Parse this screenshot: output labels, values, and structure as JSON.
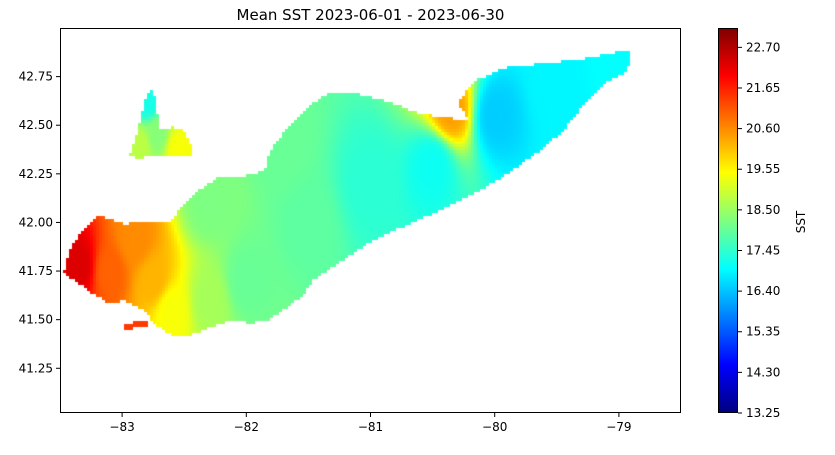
{
  "chart_data": {
    "type": "heatmap",
    "title": "Mean SST 2023-06-01 - 2023-06-30",
    "xlabel": "",
    "ylabel": "",
    "xlim": [
      -83.5,
      -78.5
    ],
    "ylim": [
      41.02,
      43.0
    ],
    "x_ticks": [
      -83,
      -82,
      -81,
      -80,
      -79
    ],
    "x_tick_labels": [
      "−83",
      "−82",
      "−81",
      "−80",
      "−79"
    ],
    "y_ticks": [
      41.25,
      41.5,
      41.75,
      42.0,
      42.25,
      42.5,
      42.75
    ],
    "y_tick_labels": [
      "41.25",
      "41.50",
      "41.75",
      "42.00",
      "42.25",
      "42.50",
      "42.75"
    ],
    "colormap": "jet",
    "colorbar": {
      "label": "SST",
      "vmin": 13.25,
      "vmax": 23.2,
      "ticks": [
        13.25,
        14.3,
        15.35,
        16.4,
        17.45,
        18.5,
        19.55,
        20.6,
        21.65,
        22.7
      ],
      "tick_labels": [
        "13.25",
        "14.30",
        "15.35",
        "16.40",
        "17.45",
        "18.50",
        "19.55",
        "20.60",
        "21.65",
        "22.70"
      ],
      "colors": [
        "#00007f",
        "#0000ff",
        "#007fff",
        "#00ffff",
        "#7fff7f",
        "#ffff00",
        "#ff7f00",
        "#ff0000",
        "#7f0000"
      ]
    },
    "regions": [
      {
        "name": "lake-erie",
        "boundary": [
          [
            -83.47,
            41.74
          ],
          [
            -83.42,
            41.86
          ],
          [
            -83.32,
            41.96
          ],
          [
            -83.2,
            42.04
          ],
          [
            -83.1,
            42.02
          ],
          [
            -82.98,
            41.99
          ],
          [
            -82.85,
            42.01
          ],
          [
            -82.72,
            42.0
          ],
          [
            -82.62,
            42.0
          ],
          [
            -82.52,
            42.08
          ],
          [
            -82.4,
            42.16
          ],
          [
            -82.2,
            42.24
          ],
          [
            -82.0,
            42.24
          ],
          [
            -81.85,
            42.27
          ],
          [
            -81.82,
            42.35
          ],
          [
            -81.75,
            42.42
          ],
          [
            -81.65,
            42.5
          ],
          [
            -81.5,
            42.6
          ],
          [
            -81.35,
            42.66
          ],
          [
            -81.1,
            42.66
          ],
          [
            -80.85,
            42.62
          ],
          [
            -80.6,
            42.56
          ],
          [
            -80.4,
            42.54
          ],
          [
            -80.2,
            42.52
          ],
          [
            -80.3,
            42.62
          ],
          [
            -80.15,
            42.73
          ],
          [
            -79.9,
            42.8
          ],
          [
            -79.55,
            42.82
          ],
          [
            -79.2,
            42.85
          ],
          [
            -79.0,
            42.88
          ],
          [
            -78.9,
            42.88
          ],
          [
            -78.93,
            42.78
          ],
          [
            -79.1,
            42.72
          ],
          [
            -79.25,
            42.63
          ],
          [
            -79.45,
            42.47
          ],
          [
            -79.65,
            42.36
          ],
          [
            -79.9,
            42.25
          ],
          [
            -80.1,
            42.17
          ],
          [
            -80.25,
            42.12
          ],
          [
            -80.45,
            42.06
          ],
          [
            -80.65,
            42.0
          ],
          [
            -80.85,
            41.95
          ],
          [
            -81.05,
            41.88
          ],
          [
            -81.28,
            41.78
          ],
          [
            -81.45,
            41.71
          ],
          [
            -81.55,
            41.62
          ],
          [
            -81.7,
            41.55
          ],
          [
            -81.82,
            41.5
          ],
          [
            -81.98,
            41.48
          ],
          [
            -82.1,
            41.5
          ],
          [
            -82.25,
            41.47
          ],
          [
            -82.45,
            41.42
          ],
          [
            -82.55,
            41.41
          ],
          [
            -82.65,
            41.44
          ],
          [
            -82.75,
            41.48
          ],
          [
            -82.82,
            41.55
          ],
          [
            -82.98,
            41.6
          ],
          [
            -83.1,
            41.58
          ],
          [
            -83.25,
            41.64
          ],
          [
            -83.38,
            41.7
          ]
        ],
        "values": [
          [
            -83.35,
            41.78,
            22.3
          ],
          [
            -83.1,
            41.75,
            21.0
          ],
          [
            -82.9,
            41.9,
            20.6
          ],
          [
            -82.75,
            41.7,
            20.2
          ],
          [
            -82.6,
            41.55,
            19.4
          ],
          [
            -82.3,
            41.6,
            18.6
          ],
          [
            -82.0,
            41.7,
            18.0
          ],
          [
            -81.5,
            42.0,
            17.9
          ],
          [
            -81.0,
            42.2,
            17.4
          ],
          [
            -80.5,
            42.3,
            17.1
          ],
          [
            -80.0,
            42.55,
            16.5
          ],
          [
            -79.5,
            42.7,
            16.9
          ],
          [
            -79.0,
            42.85,
            17.0
          ],
          [
            -80.35,
            42.58,
            20.4
          ],
          [
            -81.7,
            42.4,
            18.0
          ],
          [
            -82.3,
            42.1,
            18.2
          ]
        ]
      },
      {
        "name": "lake-st-clair",
        "boundary": [
          [
            -82.94,
            42.35
          ],
          [
            -82.88,
            42.45
          ],
          [
            -82.84,
            42.57
          ],
          [
            -82.8,
            42.67
          ],
          [
            -82.75,
            42.68
          ],
          [
            -82.72,
            42.58
          ],
          [
            -82.7,
            42.48
          ],
          [
            -82.6,
            42.49
          ],
          [
            -82.5,
            42.47
          ],
          [
            -82.44,
            42.4
          ],
          [
            -82.45,
            42.34
          ],
          [
            -82.7,
            42.34
          ],
          [
            -82.9,
            42.33
          ]
        ],
        "values": [
          [
            -82.8,
            42.62,
            17.2
          ],
          [
            -82.72,
            42.45,
            18.3
          ],
          [
            -82.55,
            42.38,
            19.4
          ],
          [
            -82.85,
            42.4,
            18.8
          ]
        ]
      },
      {
        "name": "small-south-patch",
        "boundary": [
          [
            -82.98,
            41.44
          ],
          [
            -82.98,
            41.47
          ],
          [
            -82.88,
            41.49
          ],
          [
            -82.8,
            41.49
          ],
          [
            -82.8,
            41.46
          ],
          [
            -82.9,
            41.46
          ]
        ],
        "values": [
          [
            -82.9,
            41.47,
            21.4
          ]
        ]
      }
    ]
  }
}
